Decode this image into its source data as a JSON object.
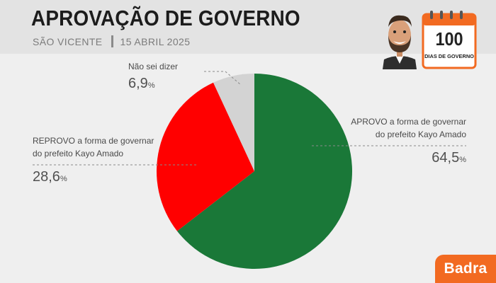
{
  "header": {
    "title": "APROVAÇÃO DE GOVERNO",
    "location": "SÃO VICENTE",
    "date": "15 ABRIL 2025"
  },
  "badge": {
    "number": "100",
    "text": "DIAS DE GOVERNO"
  },
  "brand": {
    "logo_text": "Badra"
  },
  "chart_data": {
    "type": "pie",
    "title": "APROVAÇÃO DE GOVERNO",
    "slices": [
      {
        "label": "APROVO a forma de governar do prefeito Kayo Amado",
        "value": 64.5,
        "value_text": "64,5",
        "unit": "%",
        "color": "#1a7838"
      },
      {
        "label": "REPROVO a forma de governar do prefeito Kayo Amado",
        "value": 28.6,
        "value_text": "28,6",
        "unit": "%",
        "color": "#ff0000"
      },
      {
        "label": "Não sei dizer",
        "value": 6.9,
        "value_text": "6,9",
        "unit": "%",
        "color": "#d3d3d3"
      }
    ],
    "label_lines": {
      "aprovo": [
        "APROVO a forma de governar",
        "do prefeito Kayo Amado"
      ],
      "reprovo": [
        "REPROVO a forma de governar",
        "do prefeito Kayo Amado"
      ],
      "nao_sei": [
        "Não sei dizer"
      ]
    }
  }
}
